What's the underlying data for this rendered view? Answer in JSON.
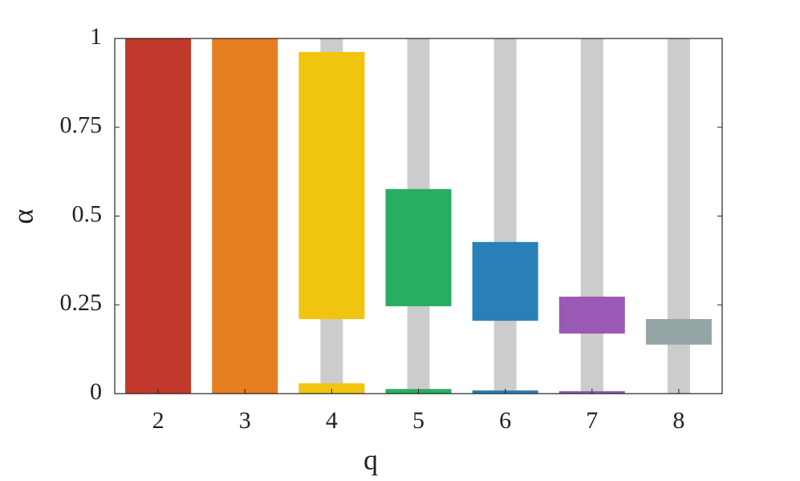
{
  "chart_data": {
    "type": "range-bar",
    "x_label": "q",
    "y_label": "α",
    "categories": [
      "2",
      "3",
      "4",
      "5",
      "6",
      "7",
      "8"
    ],
    "low": [
      0,
      0,
      0.21,
      0.246,
      0.205,
      0.169,
      0.138
    ],
    "high": [
      1,
      1,
      0.962,
      0.576,
      0.427,
      0.273,
      0.21
    ],
    "bottom_values": [
      null,
      null,
      0.029,
      0.013,
      0.009,
      0.007,
      null
    ],
    "colors": [
      "#c0392b",
      "#e67e22",
      "#f1c40f",
      "#27ae60",
      "#2980b9",
      "#9b59b6",
      "#95a5a6"
    ],
    "background": [
      false,
      false,
      true,
      true,
      true,
      true,
      true
    ],
    "background_color": "#cccccc",
    "ylim": [
      0,
      1
    ],
    "yticks": [
      0,
      0.25,
      0.5,
      0.75,
      1
    ]
  }
}
